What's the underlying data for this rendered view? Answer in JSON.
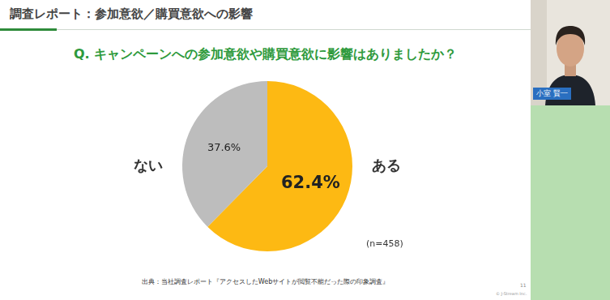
{
  "header": {
    "title": "調査レポート：参加意欲／購買意欲への影響"
  },
  "chart_data": {
    "type": "pie",
    "title": "Q. キャンペーンへの参加意欲や購買意欲に影響はありましたか？",
    "categories": [
      "ある",
      "ない"
    ],
    "values": [
      62.4,
      37.6
    ],
    "value_labels": [
      "62.4%",
      "37.6%"
    ],
    "colors": [
      "#FDB913",
      "#BDBDBD"
    ],
    "data_labels": true,
    "annotations": [
      "(n=458)"
    ]
  },
  "footer": {
    "source": "出典：当社調査レポート『アクセスしたWebサイトが閲覧不能だった際の印象調査』",
    "page": "11",
    "copyright": "© J-Stream Inc."
  },
  "video": {
    "speaker": "小室 賢一"
  }
}
